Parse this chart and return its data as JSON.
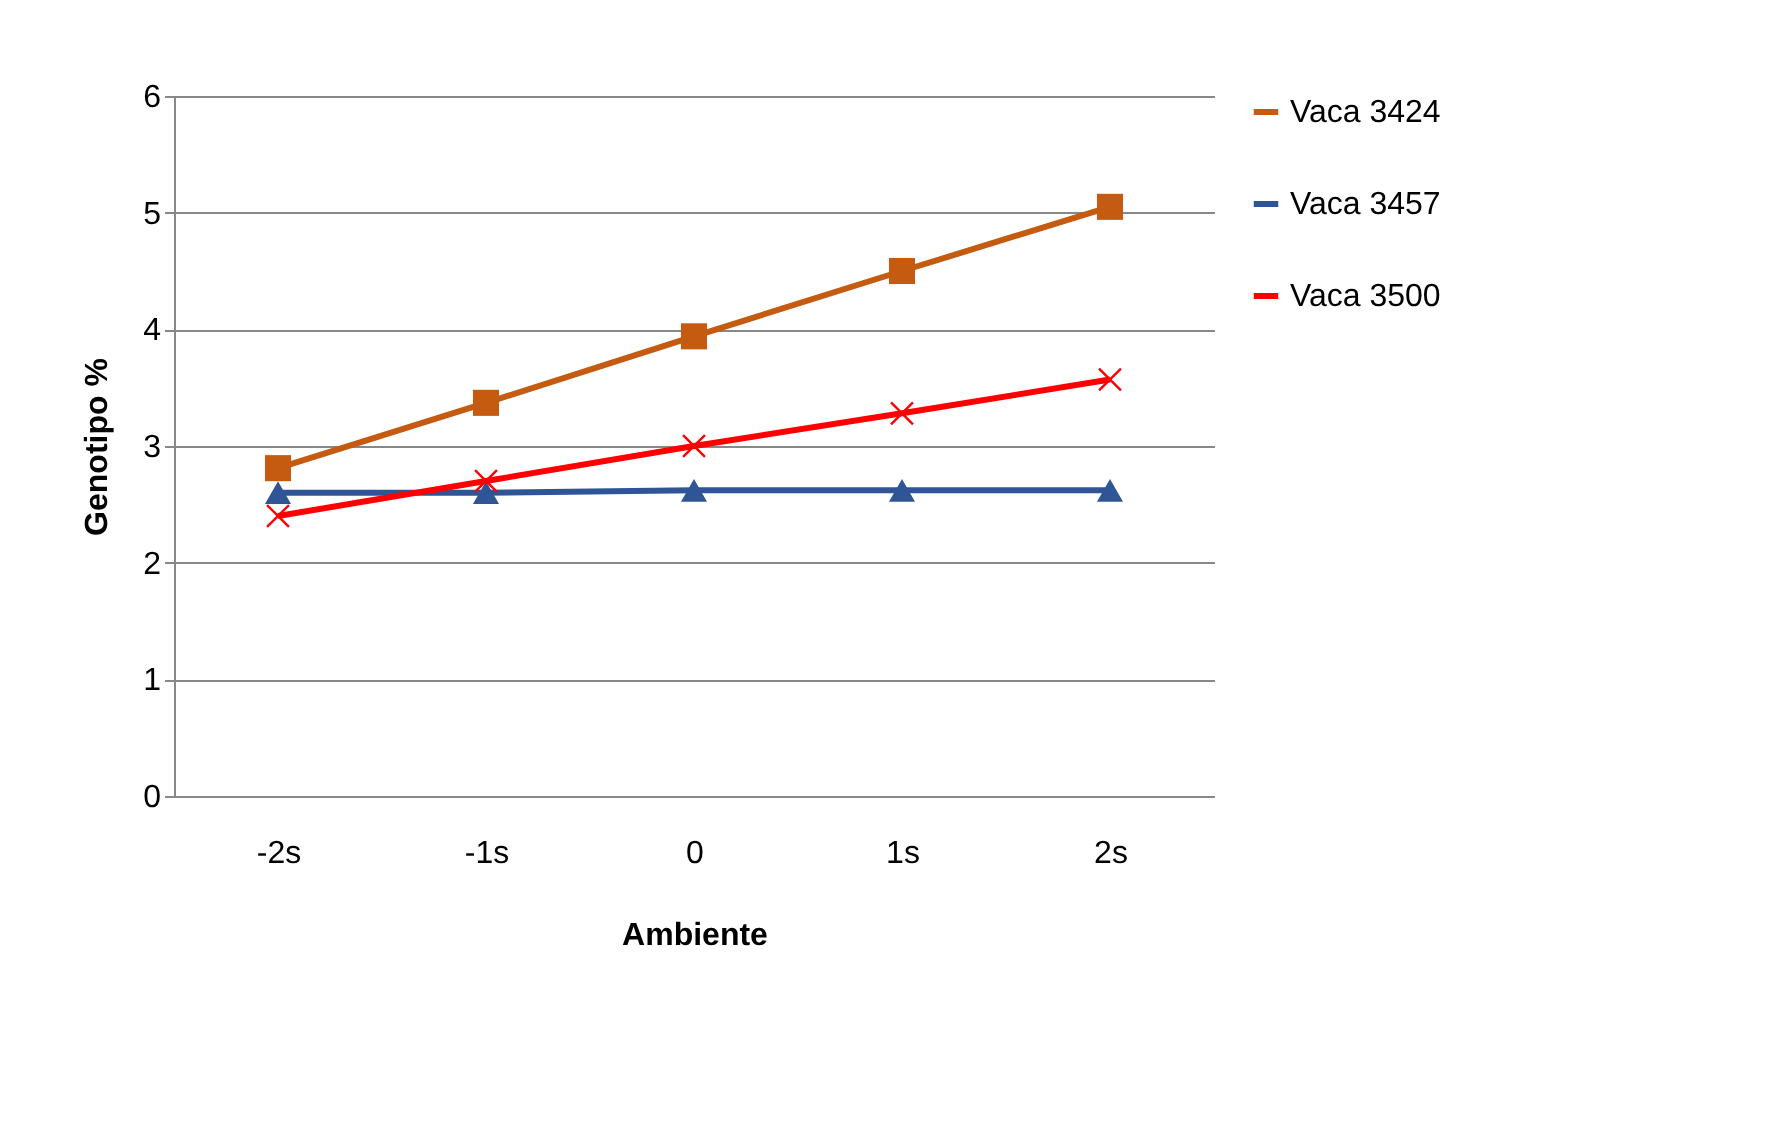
{
  "chart_data": {
    "type": "line",
    "xlabel": "Ambiente",
    "ylabel": "Genotipo %",
    "categories": [
      "-2s",
      "-1s",
      "0",
      "1s",
      "2s"
    ],
    "series": [
      {
        "name": "Vaca 3424",
        "color": "#c55a11",
        "marker": "square",
        "values": [
          2.81,
          3.37,
          3.94,
          4.5,
          5.05
        ]
      },
      {
        "name": "Vaca 3457",
        "color": "#2f5597",
        "marker": "triangle",
        "values": [
          2.6,
          2.6,
          2.62,
          2.62,
          2.62
        ]
      },
      {
        "name": "Vaca 3500",
        "color": "#ff0000",
        "marker": "cross",
        "values": [
          2.4,
          2.7,
          3.0,
          3.28,
          3.57
        ]
      }
    ],
    "ylim": [
      0,
      6
    ],
    "yticks": [
      0,
      1,
      2,
      3,
      4,
      5,
      6
    ],
    "grid": "y",
    "legend": "right"
  }
}
